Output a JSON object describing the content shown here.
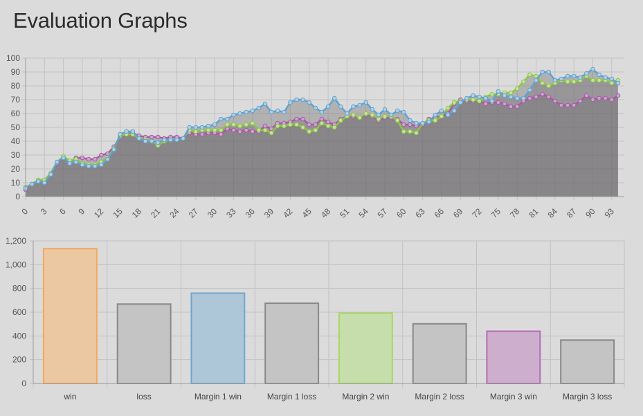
{
  "page": {
    "title": "Evaluation Graphs"
  },
  "chart_data": [
    {
      "type": "line",
      "title": "",
      "xlabel": "",
      "ylabel": "",
      "ylim": [
        0,
        100
      ],
      "yticks": [
        0,
        10,
        20,
        30,
        40,
        50,
        60,
        70,
        80,
        90,
        100
      ],
      "xticks": [
        0,
        3,
        6,
        9,
        12,
        15,
        18,
        21,
        24,
        27,
        30,
        33,
        36,
        39,
        42,
        45,
        48,
        51,
        54,
        57,
        60,
        63,
        66,
        69,
        72,
        75,
        78,
        81,
        84,
        87,
        90,
        93
      ],
      "x_range": [
        0,
        95
      ],
      "grid": true,
      "fill": true,
      "series": [
        {
          "color": "#d1a2d1",
          "stroke": "#a35ba3",
          "values": [
            5,
            9,
            12,
            12,
            16,
            24,
            28,
            25,
            28,
            28,
            27,
            27,
            30,
            31,
            36,
            43,
            45,
            46,
            44,
            43,
            43,
            43,
            42,
            43,
            43,
            42,
            46,
            45,
            45,
            46,
            46,
            45,
            49,
            48,
            47,
            48,
            47,
            47,
            51,
            49,
            53,
            53,
            54,
            56,
            56,
            52,
            52,
            56,
            54,
            52,
            56,
            58,
            58,
            57,
            59,
            58,
            55,
            57,
            57,
            56,
            52,
            52,
            51,
            52,
            56,
            57,
            58,
            60,
            67,
            70,
            69,
            69,
            69,
            67,
            68,
            68,
            67,
            65,
            65,
            69,
            71,
            72,
            74,
            72,
            69,
            66,
            66,
            66,
            69,
            73,
            70,
            71,
            71,
            70,
            73
          ]
        },
        {
          "color": "#c6e0a8",
          "stroke": "#8dc63f",
          "values": [
            7,
            9,
            12,
            12,
            17,
            25,
            29,
            26,
            27,
            24,
            23,
            23,
            25,
            28,
            35,
            44,
            45,
            45,
            42,
            41,
            40,
            37,
            40,
            41,
            41,
            42,
            48,
            47,
            48,
            48,
            48,
            48,
            52,
            52,
            51,
            52,
            53,
            48,
            48,
            46,
            51,
            51,
            52,
            52,
            50,
            47,
            48,
            53,
            51,
            50,
            55,
            58,
            59,
            57,
            60,
            59,
            56,
            58,
            58,
            55,
            47,
            47,
            46,
            53,
            55,
            55,
            58,
            64,
            68,
            69,
            70,
            70,
            69,
            72,
            74,
            74,
            75,
            75,
            78,
            83,
            88,
            87,
            82,
            80,
            82,
            84,
            83,
            83,
            84,
            87,
            84,
            84,
            84,
            82,
            84
          ]
        },
        {
          "color": "#b4cfe0",
          "stroke": "#5fa2cf",
          "values": [
            6,
            9,
            11,
            10,
            16,
            25,
            28,
            24,
            25,
            23,
            22,
            22,
            23,
            27,
            34,
            45,
            47,
            47,
            42,
            40,
            40,
            39,
            41,
            41,
            41,
            42,
            50,
            50,
            50,
            51,
            52,
            56,
            56,
            59,
            60,
            61,
            62,
            64,
            67,
            61,
            62,
            61,
            68,
            70,
            70,
            68,
            64,
            61,
            65,
            71,
            65,
            60,
            65,
            66,
            68,
            63,
            59,
            63,
            59,
            62,
            61,
            55,
            53,
            53,
            54,
            59,
            62,
            59,
            62,
            68,
            71,
            73,
            72,
            71,
            69,
            76,
            73,
            72,
            71,
            71,
            77,
            84,
            90,
            90,
            84,
            85,
            87,
            87,
            86,
            89,
            92,
            88,
            86,
            85,
            82
          ]
        }
      ]
    },
    {
      "type": "bar",
      "title": "",
      "xlabel": "",
      "ylabel": "",
      "ylim": [
        0,
        1200
      ],
      "yticks": [
        "0",
        "200",
        "400",
        "600",
        "800",
        "1,000",
        "1,200"
      ],
      "ytick_values": [
        0,
        200,
        400,
        600,
        800,
        1000,
        1200
      ],
      "grid": true,
      "categories": [
        "win",
        "loss",
        "Margin 1 win",
        "Margin 1 loss",
        "Margin 2 win",
        "Margin 2 loss",
        "Margin 3 win",
        "Margin 3 loss"
      ],
      "values": [
        1135,
        668,
        760,
        675,
        592,
        502,
        440,
        365
      ],
      "fill_colors": [
        "#ecc8a2",
        "#c5c4c5",
        "#adc6d8",
        "#c5c4c5",
        "#c6ddac",
        "#c5c4c5",
        "#cdaecc",
        "#c5c4c5"
      ],
      "stroke_colors": [
        "#f5a858",
        "#888888",
        "#6fa6cf",
        "#888888",
        "#a6d860",
        "#888888",
        "#b26cb6",
        "#888888"
      ]
    }
  ]
}
